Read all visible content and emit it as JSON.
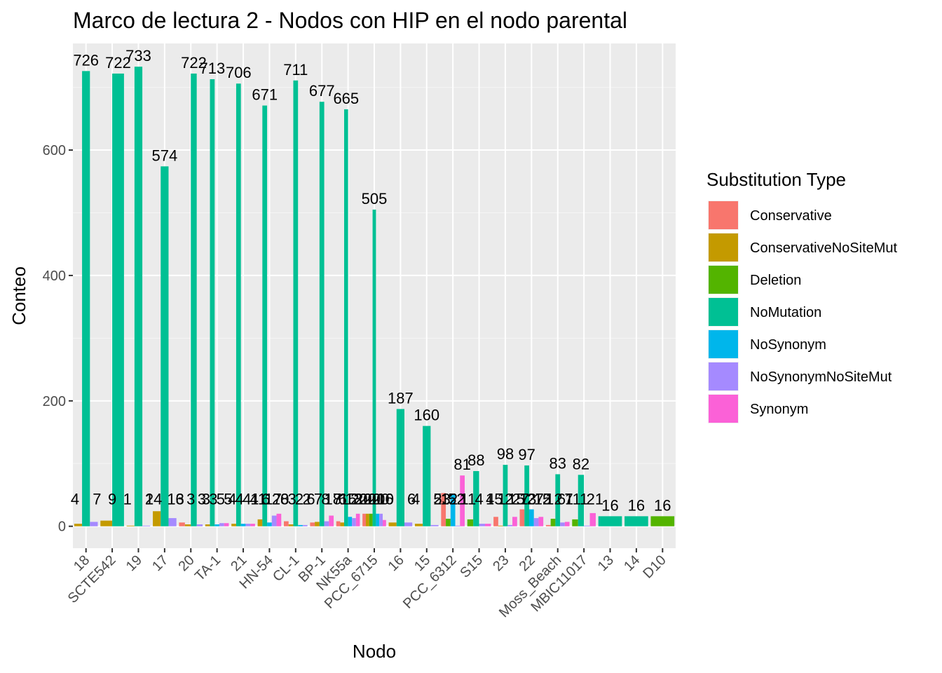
{
  "chart_data": {
    "type": "bar",
    "title": "Marco de lectura 2 - Nodos con HIP en el nodo parental",
    "xlabel": "Nodo",
    "ylabel": "Conteo",
    "ylim": [
      -35,
      770
    ],
    "yticks": [
      0,
      200,
      400,
      600
    ],
    "grid": true,
    "legend_position": "right",
    "legend_title": "Substitution Type",
    "categories": [
      "18",
      "SCTE542",
      "19",
      "17",
      "20",
      "TA-1",
      "21",
      "HN-54",
      "CL-1",
      "BP-1",
      "NK55a",
      "PCC_6715",
      "16",
      "15",
      "PCC_6312",
      "S15",
      "23",
      "22",
      "Moss_Beach",
      "MBIC11017",
      "13",
      "14",
      "D10"
    ],
    "series": [
      {
        "name": "Conservative",
        "color": "#F8766D",
        "values": [
          null,
          null,
          null,
          null,
          6,
          null,
          null,
          null,
          8,
          6,
          8,
          20,
          null,
          null,
          53,
          null,
          15,
          27,
          2,
          null,
          null,
          null,
          null
        ]
      },
      {
        "name": "ConservativeNoSiteMut",
        "color": "#C49A00",
        "values": [
          4,
          9,
          1,
          24,
          3,
          3,
          4,
          11,
          3,
          7,
          6,
          20,
          6,
          4,
          null,
          null,
          1,
          null,
          null,
          null,
          null,
          null,
          null
        ]
      },
      {
        "name": "Deletion",
        "color": "#53B400",
        "values": [
          null,
          null,
          null,
          null,
          null,
          null,
          null,
          null,
          null,
          null,
          null,
          20,
          null,
          null,
          12,
          11,
          null,
          null,
          12,
          11,
          null,
          null,
          16
        ]
      },
      {
        "name": "NoMutation",
        "color": "#00C094",
        "values": [
          726,
          722,
          733,
          574,
          722,
          713,
          706,
          671,
          711,
          677,
          665,
          505,
          187,
          160,
          null,
          88,
          98,
          97,
          83,
          82,
          16,
          16,
          null
        ]
      },
      {
        "name": "NoSynonym",
        "color": "#00B6EB",
        "values": [
          null,
          null,
          null,
          null,
          null,
          3,
          4,
          6,
          2,
          null,
          15,
          20,
          null,
          null,
          52,
          null,
          null,
          27,
          null,
          null,
          null,
          null,
          null
        ]
      },
      {
        "name": "NoSynonymNoSiteMut",
        "color": "#A58AFF",
        "values": [
          7,
          null,
          1,
          13,
          3,
          5,
          4,
          17,
          2,
          8,
          13,
          20,
          6,
          2,
          1,
          4,
          2,
          13,
          6,
          1,
          null,
          null,
          null
        ]
      },
      {
        "name": "Synonym",
        "color": "#FB61D7",
        "values": [
          null,
          null,
          null,
          null,
          null,
          5,
          4,
          20,
          null,
          17,
          20,
          10,
          null,
          null,
          81,
          4,
          15,
          15,
          7,
          21,
          null,
          null,
          null
        ]
      }
    ],
    "data_labels": [
      [
        "4",
        "7",
        "726"
      ],
      [
        "9",
        "722"
      ],
      [
        "1",
        "1",
        "733"
      ],
      [
        "24",
        "13",
        "574"
      ],
      [
        "6",
        "3",
        "3",
        "722"
      ],
      [
        "3",
        "3",
        "5",
        "5",
        "713"
      ],
      [
        "4",
        "4",
        "4",
        "4",
        "706"
      ],
      [
        "11",
        "6",
        "17",
        "20",
        "671"
      ],
      [
        "8",
        "3",
        "2",
        "2",
        "711"
      ],
      [
        "6",
        "7",
        "8",
        "17",
        "677"
      ],
      [
        "8",
        "6",
        "15",
        "13",
        "20",
        "665"
      ],
      [
        "20",
        "20",
        "20",
        "20",
        "20",
        "10",
        "505"
      ],
      [
        "6",
        "6",
        "187"
      ],
      [
        "4",
        "2",
        "160"
      ],
      [
        "53",
        "12",
        "52",
        "1",
        "81"
      ],
      [
        "11",
        "4",
        "4",
        "88"
      ],
      [
        "15",
        "1",
        "2",
        "15",
        "98"
      ],
      [
        "27",
        "13",
        "27",
        "15",
        "97"
      ],
      [
        "2",
        "12",
        "6",
        "7",
        "83"
      ],
      [
        "11",
        "1",
        "21",
        "82"
      ],
      [
        "16"
      ],
      [
        "16"
      ],
      [
        "16"
      ]
    ]
  }
}
